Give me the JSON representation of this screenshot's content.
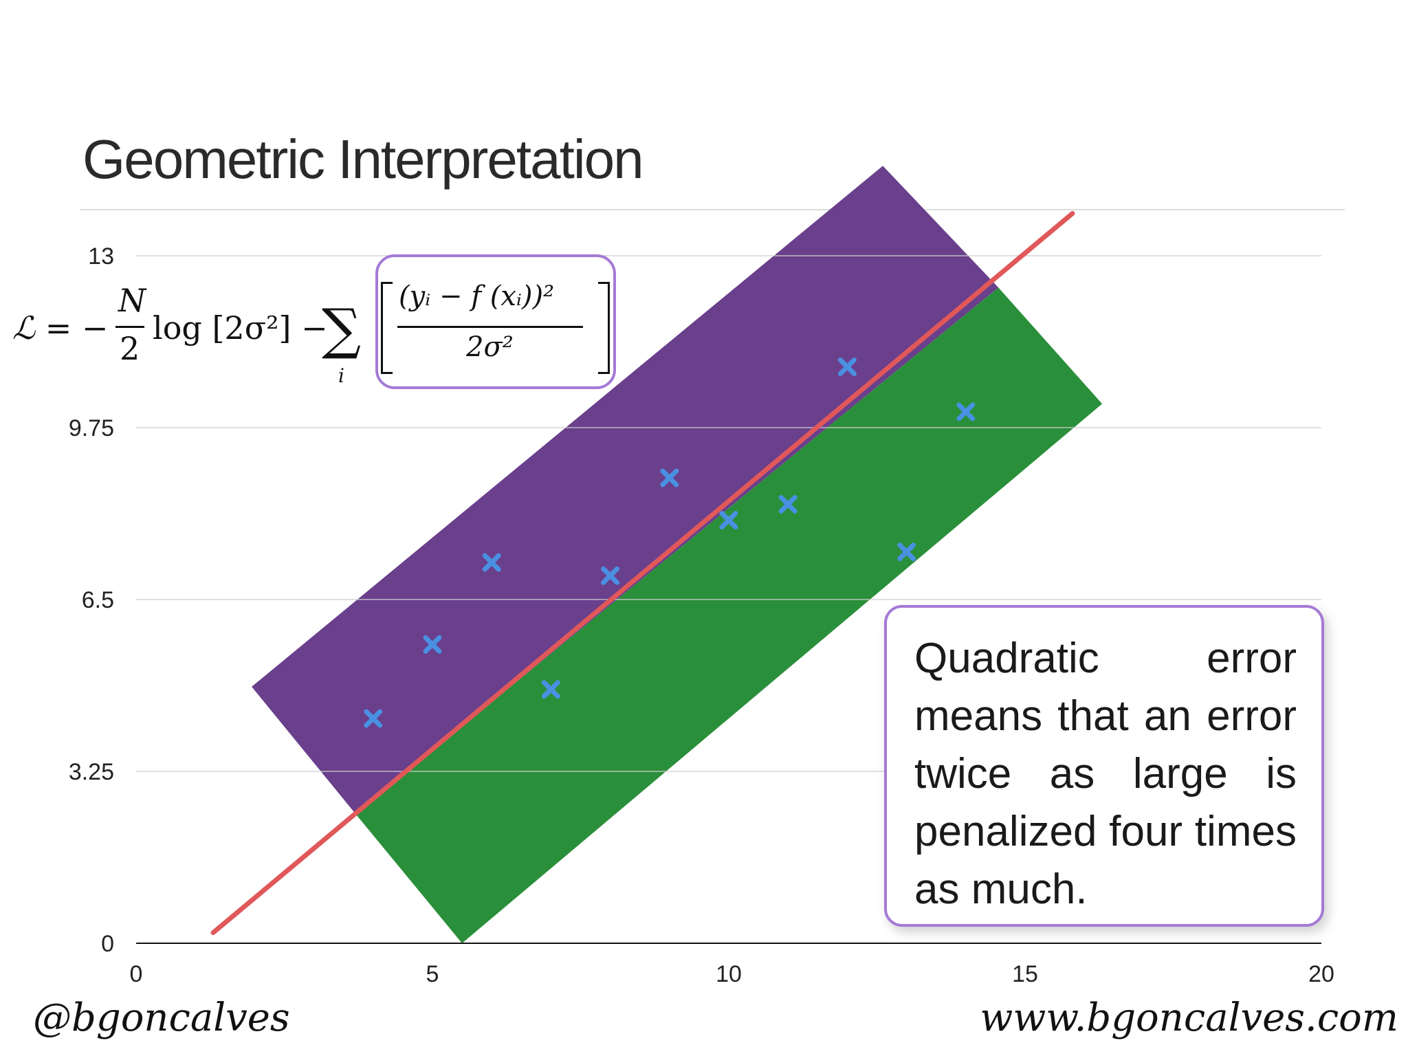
{
  "slide": {
    "title": "Geometric Interpretation",
    "callout": "Quadratic error means that an error twice as large is penalized four times as much.",
    "footer_left": "@bgoncalves",
    "footer_right": "www.bgoncalves.com"
  },
  "formula": {
    "lhs": "ℒ = −",
    "frac_num": "N",
    "frac_den": "2",
    "log_term": "log [2σ²] −",
    "sum_symbol": "∑",
    "sum_index": "i",
    "inner_num": "(yᵢ − f (xᵢ))²",
    "inner_den": "2σ²"
  },
  "chart_data": {
    "type": "scatter",
    "title": "",
    "xlabel": "",
    "ylabel": "",
    "xlim": [
      0,
      20
    ],
    "ylim": [
      0,
      13
    ],
    "xticks": [
      0,
      5,
      10,
      15,
      20
    ],
    "yticks": [
      0,
      3.25,
      6.5,
      9.75,
      13
    ],
    "ytick_labels": [
      "0",
      "3.25",
      "6.5",
      "9.75",
      "13"
    ],
    "grid": "horizontal",
    "points": [
      {
        "x": 4,
        "y": 4.25
      },
      {
        "x": 5,
        "y": 5.65
      },
      {
        "x": 6,
        "y": 7.2
      },
      {
        "x": 7,
        "y": 4.8
      },
      {
        "x": 8,
        "y": 6.95
      },
      {
        "x": 9,
        "y": 8.8
      },
      {
        "x": 10,
        "y": 8.0
      },
      {
        "x": 11,
        "y": 8.3
      },
      {
        "x": 12,
        "y": 10.9
      },
      {
        "x": 13,
        "y": 7.4
      },
      {
        "x": 14,
        "y": 10.05
      }
    ],
    "fit_line": {
      "x": [
        1.3,
        15.8
      ],
      "y": [
        0.2,
        13.8
      ]
    },
    "bands": [
      {
        "region": "above-line",
        "polygon": [
          [
            1.95,
            4.85
          ],
          [
            12.6,
            14.7
          ],
          [
            14.55,
            12.4
          ],
          [
            3.7,
            2.45
          ]
        ]
      },
      {
        "region": "below-line",
        "polygon": [
          [
            3.7,
            2.45
          ],
          [
            14.55,
            12.4
          ],
          [
            16.3,
            10.2
          ],
          [
            5.5,
            0.0
          ]
        ]
      }
    ],
    "colors": {
      "band_above": "#6a3f8c",
      "band_below": "#2a8f3a",
      "fit_line": "#e0585a",
      "marker": "#4a90e2",
      "grid": "#cfcfcf",
      "axis": "#111111"
    }
  }
}
